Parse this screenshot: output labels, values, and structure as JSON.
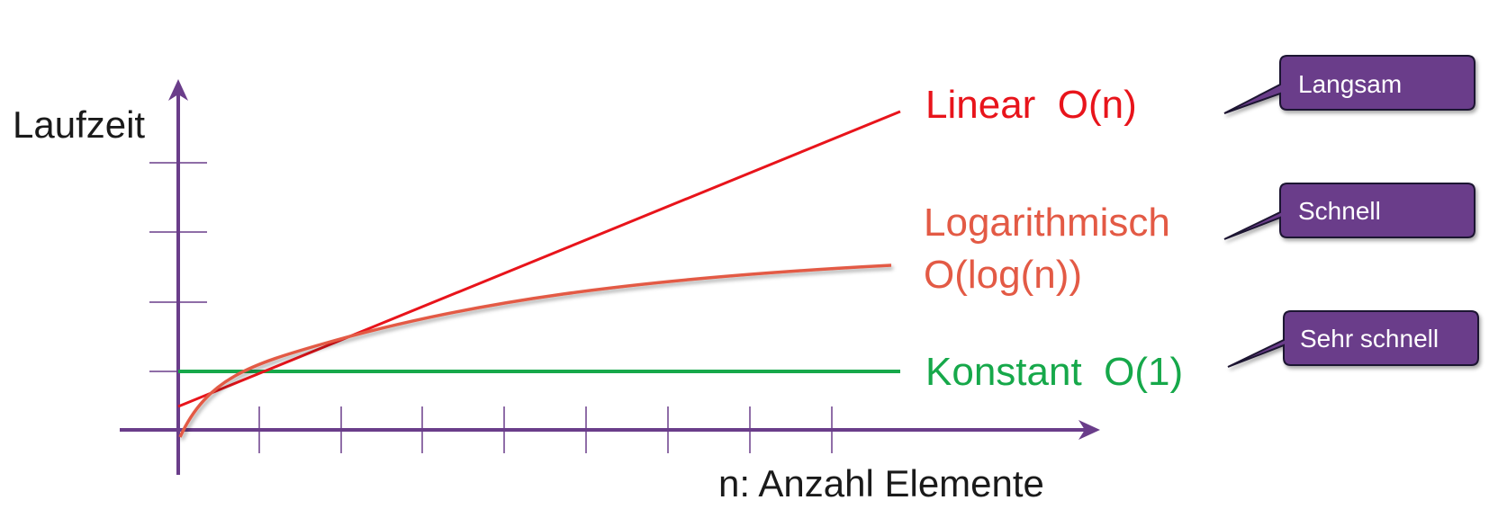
{
  "axes": {
    "y_label": "Laufzeit",
    "x_label": "n: Anzahl Elemente",
    "color": "#6a3d8a"
  },
  "curves": {
    "linear": {
      "label": "Linear  O(n)",
      "color": "#e8141b"
    },
    "logarithmic": {
      "label_line1": "Logarithmisch",
      "label_line2": "O(log(n))",
      "color": "#e35a45"
    },
    "constant": {
      "label": "Konstant  O(1)",
      "color": "#16a84a"
    }
  },
  "callouts": {
    "linear": "Langsam",
    "logarithmic": "Schnell",
    "constant": "Sehr schnell",
    "fill": "#6a3d8a"
  }
}
